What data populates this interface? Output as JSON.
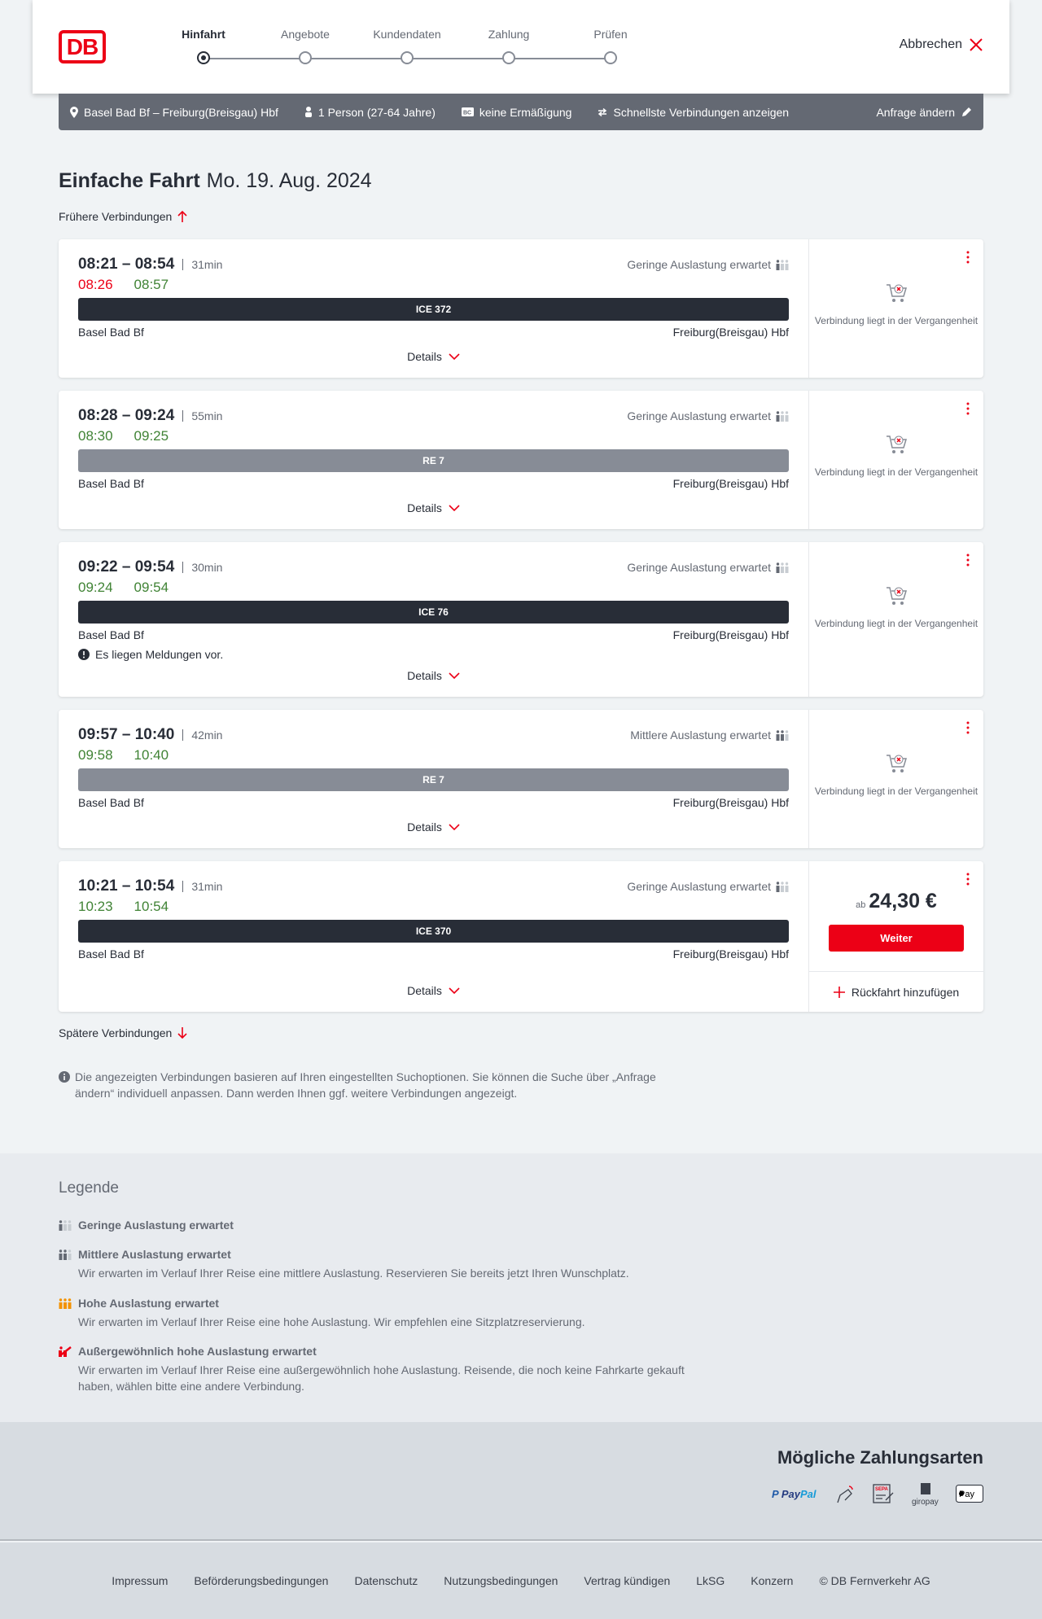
{
  "header": {
    "logo": "DB",
    "steps": [
      "Hinfahrt",
      "Angebote",
      "Kundendaten",
      "Zahlung",
      "Prüfen"
    ],
    "active_step": 0,
    "cancel": "Abbrechen"
  },
  "infobar": {
    "route": "Basel Bad Bf – Freiburg(Breisgau) Hbf",
    "passengers": "1 Person (27-64 Jahre)",
    "bahncard": "keine Ermäßigung",
    "option": "Schnellste Verbindungen anzeigen",
    "edit": "Anfrage ändern"
  },
  "title": {
    "trip": "Einfache Fahrt",
    "date": "Mo. 19. Aug. 2024"
  },
  "earlier": "Frühere Verbindungen",
  "later": "Spätere Verbindungen",
  "details_label": "Details",
  "past_label": "Verbindung liegt in der Vergangenheit",
  "connections": [
    {
      "times": "08:21 – 08:54",
      "duration": "31min",
      "rt_dep": "08:26",
      "rt_dep_color": "#ec0016",
      "rt_arr": "08:57",
      "rt_arr_color": "#408335",
      "load": "Geringe Auslastung erwartet",
      "load_level": 1,
      "train": "ICE 372",
      "type": "ice",
      "from": "Basel Bad Bf",
      "to": "Freiburg(Breisgau) Hbf",
      "status": "past"
    },
    {
      "times": "08:28 – 09:24",
      "duration": "55min",
      "rt_dep": "08:30",
      "rt_dep_color": "#408335",
      "rt_arr": "09:25",
      "rt_arr_color": "#408335",
      "load": "Geringe Auslastung erwartet",
      "load_level": 1,
      "train": "RE 7",
      "type": "re",
      "from": "Basel Bad Bf",
      "to": "Freiburg(Breisgau) Hbf",
      "status": "past"
    },
    {
      "times": "09:22 – 09:54",
      "duration": "30min",
      "rt_dep": "09:24",
      "rt_dep_color": "#408335",
      "rt_arr": "09:54",
      "rt_arr_color": "#408335",
      "load": "Geringe Auslastung erwartet",
      "load_level": 1,
      "train": "ICE 76",
      "type": "ice",
      "from": "Basel Bad Bf",
      "to": "Freiburg(Breisgau) Hbf",
      "message": "Es liegen Meldungen vor.",
      "status": "past"
    },
    {
      "times": "09:57 – 10:40",
      "duration": "42min",
      "rt_dep": "09:58",
      "rt_dep_color": "#408335",
      "rt_arr": "10:40",
      "rt_arr_color": "#408335",
      "load": "Mittlere Auslastung erwartet",
      "load_level": 2,
      "train": "RE 7",
      "type": "re",
      "from": "Basel Bad Bf",
      "to": "Freiburg(Breisgau) Hbf",
      "status": "past"
    },
    {
      "times": "10:21 – 10:54",
      "duration": "31min",
      "rt_dep": "10:23",
      "rt_dep_color": "#408335",
      "rt_arr": "10:54",
      "rt_arr_color": "#408335",
      "load": "Geringe Auslastung erwartet",
      "load_level": 1,
      "train": "ICE 370",
      "type": "ice",
      "from": "Basel Bad Bf",
      "to": "Freiburg(Breisgau) Hbf",
      "status": "bookable",
      "price_prefix": "ab",
      "price": "24,30 €",
      "button": "Weiter",
      "return": "Rückfahrt hinzufügen"
    }
  ],
  "note": "Die angezeigten Verbindungen basieren auf Ihren eingestellten Suchoptionen. Sie können die Suche über „Anfrage ändern“ individuell anpassen. Dann werden Ihnen ggf. weitere Verbindungen angezeigt.",
  "legend": {
    "title": "Legende",
    "items": [
      {
        "title": "Geringe Auslastung erwartet",
        "desc": "",
        "color": "#646973"
      },
      {
        "title": "Mittlere Auslastung erwartet",
        "desc": "Wir erwarten im Verlauf Ihrer Reise eine mittlere Auslastung. Reservieren Sie bereits jetzt Ihren Wunschplatz.",
        "color": "#646973"
      },
      {
        "title": "Hohe Auslastung erwartet",
        "desc": "Wir erwarten im Verlauf Ihrer Reise eine hohe Auslastung. Wir empfehlen eine Sitzplatzreservierung.",
        "color": "#f39200"
      },
      {
        "title": "Außergewöhnlich hohe Auslastung erwartet",
        "desc": "Wir erwarten im Verlauf Ihrer Reise eine außergewöhnlich hohe Auslastung. Reisende, die noch keine Fahrkarte gekauft haben, wählen bitte eine andere Verbindung.",
        "color": "#ec0016"
      }
    ]
  },
  "payment": {
    "title": "Mögliche Zahlungsarten",
    "methods": [
      "PayPal",
      "Lastschrift",
      "SEPA",
      "giropay",
      "Apple Pay"
    ]
  },
  "footer": [
    "Impressum",
    "Beförderungsbedingungen",
    "Datenschutz",
    "Nutzungsbedingungen",
    "Vertrag kündigen",
    "LkSG",
    "Konzern",
    "© DB Fernverkehr AG"
  ]
}
